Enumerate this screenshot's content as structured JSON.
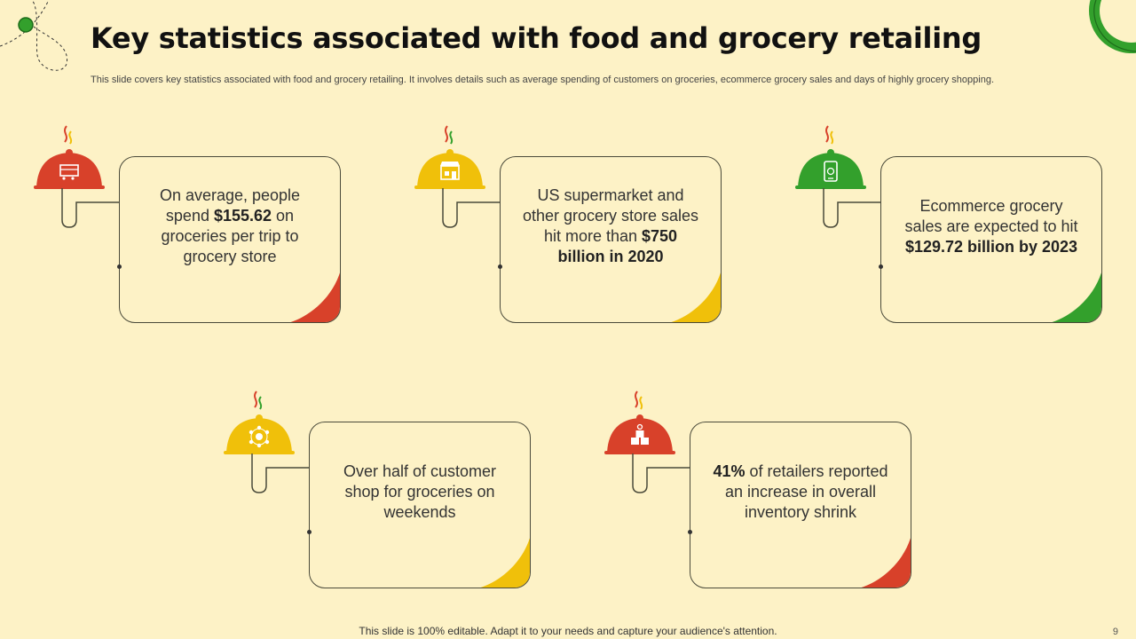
{
  "title": "Key statistics associated with food and grocery retailing",
  "subtitle": "This slide covers key statistics associated with food and grocery retailing. It involves details such as average spending of customers on groceries, ecommerce grocery sales and days of highly grocery shopping.",
  "colors": {
    "red": "#d8412a",
    "yellow": "#f0c00a",
    "green": "#33a02c",
    "background": "#fdf2c6"
  },
  "cards": [
    {
      "icon": "grocery-shop-cart-icon",
      "color": "#d8412a",
      "t1": "On average, people spend ",
      "b1": "$155.62",
      "t2": " on groceries per trip to grocery store",
      "b2": ""
    },
    {
      "icon": "storefront-icon",
      "color": "#f0c00a",
      "t1": "US supermarket and other grocery store sales hit more than ",
      "b1": "$750 billion in 2020",
      "t2": "",
      "b2": ""
    },
    {
      "icon": "mobile-shopping-icon",
      "color": "#33a02c",
      "t1": "Ecommerce grocery sales are expected to hit ",
      "b1": "$129.72 billion by 2023",
      "t2": "",
      "b2": ""
    },
    {
      "icon": "customer-network-icon",
      "color": "#f0c00a",
      "t1": "Over half of customer shop for groceries on weekends",
      "b1": "",
      "t2": "",
      "b2": ""
    },
    {
      "icon": "inventory-boxes-icon",
      "color": "#d8412a",
      "t1": "",
      "b1": "41%",
      "t2": " of retailers reported an increase in overall inventory shrink",
      "b2": ""
    }
  ],
  "footer": "This slide is 100% editable. Adapt it to your needs and capture your audience's attention.",
  "page_number": "9"
}
